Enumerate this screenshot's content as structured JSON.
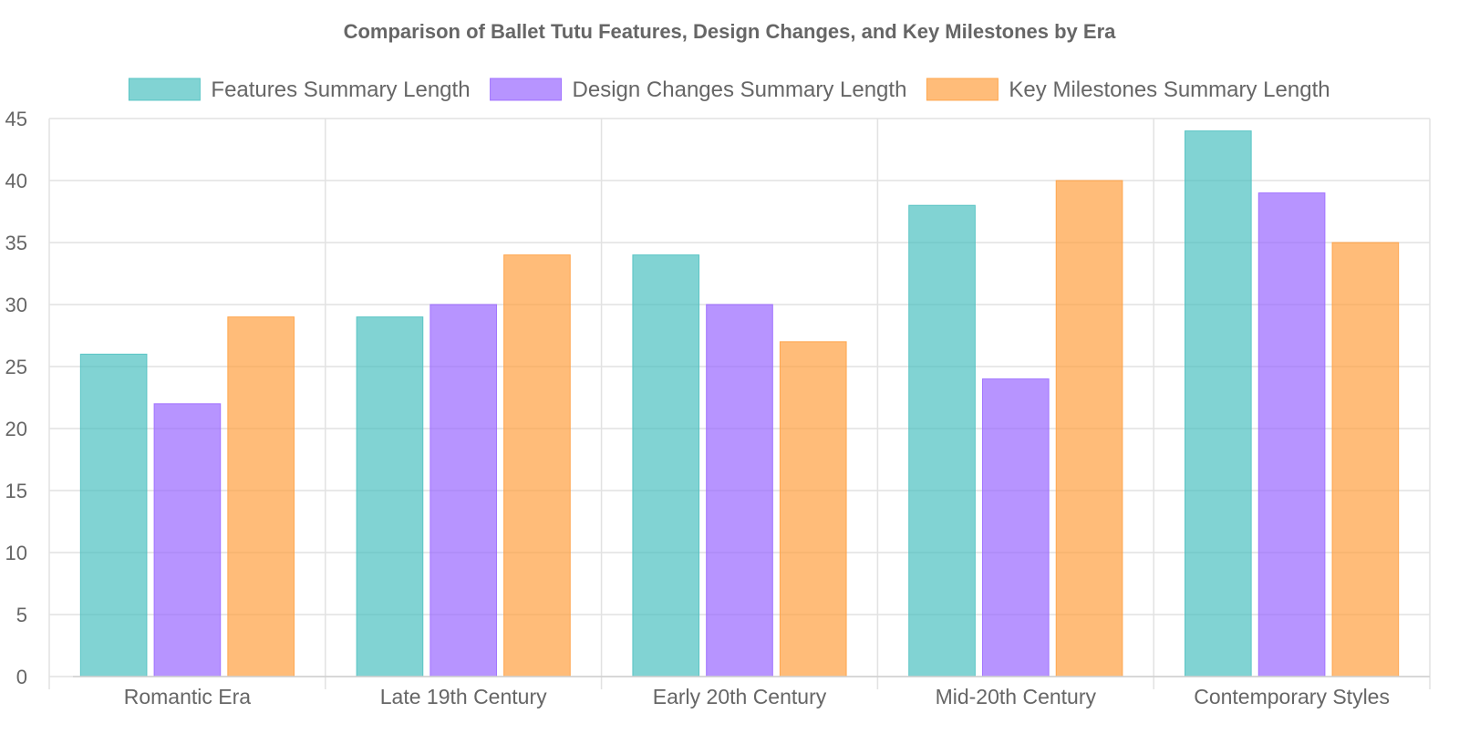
{
  "chart_data": {
    "type": "bar",
    "title": "Comparison of Ballet Tutu Features, Design Changes, and Key Milestones by Era",
    "xlabel": "",
    "ylabel": "",
    "categories": [
      "Romantic Era",
      "Late 19th Century",
      "Early 20th Century",
      "Mid-20th Century",
      "Contemporary Styles"
    ],
    "series": [
      {
        "name": "Features Summary Length",
        "values": [
          26,
          29,
          34,
          38,
          44
        ],
        "color": "#4bc0c0"
      },
      {
        "name": "Design Changes Summary Length",
        "values": [
          22,
          30,
          30,
          24,
          39
        ],
        "color": "#9966ff"
      },
      {
        "name": "Key Milestones Summary Length",
        "values": [
          29,
          34,
          27,
          40,
          35
        ],
        "color": "#ff9f40"
      }
    ],
    "ylim": [
      0,
      45
    ],
    "y_ticks": [
      0,
      5,
      10,
      15,
      20,
      25,
      30,
      35,
      40,
      45
    ],
    "grid": true,
    "legend_position": "top"
  }
}
